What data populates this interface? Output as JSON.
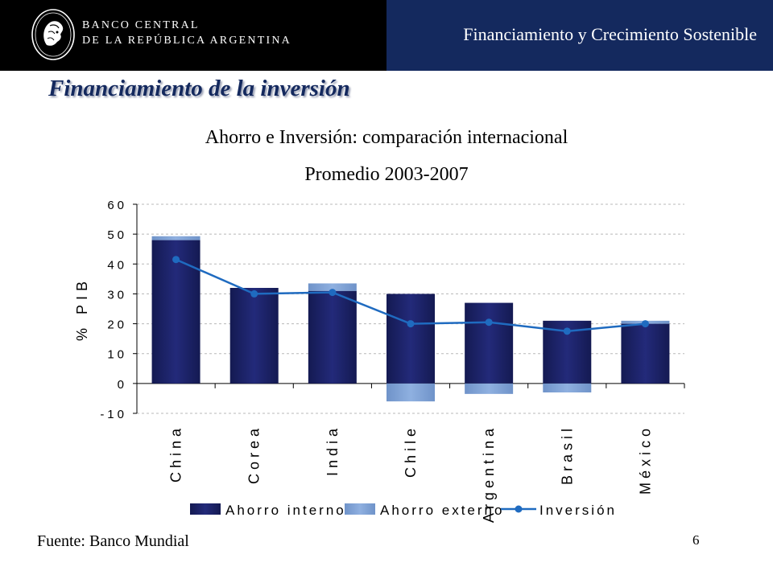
{
  "header": {
    "bank_line1": "BANCO CENTRAL",
    "bank_line2": "DE LA REPÚBLICA ARGENTINA",
    "title": "Financiamiento y Crecimiento Sostenible"
  },
  "slide": {
    "section_title": "Financiamiento de la inversión",
    "source": "Fuente: Banco Mundial",
    "page_number": "6"
  },
  "colors": {
    "header_blue": "#14295e",
    "ahorro_interno": "#232a7a",
    "ahorro_externo": "#8fb0e0",
    "inversion": "#1f6bc0"
  },
  "chart_data": {
    "type": "bar",
    "title": "Ahorro e Inversión: comparación internacional",
    "subtitle": "Promedio 2003-2007",
    "ylabel": "% PIB",
    "xlabel": "",
    "ylim": [
      -10,
      60
    ],
    "yticks": [
      "-10",
      "0",
      "10",
      "20",
      "30",
      "40",
      "50",
      "60"
    ],
    "ytick_values": [
      -10,
      0,
      10,
      20,
      30,
      40,
      50,
      60
    ],
    "grid": true,
    "legend_position": "bottom",
    "categories": [
      "China",
      "Corea",
      "India",
      "Chile",
      "Argentina",
      "Brasil",
      "México"
    ],
    "series": [
      {
        "name": "Ahorro interno",
        "type": "bar",
        "values": [
          48,
          32,
          31,
          30,
          27,
          21,
          20
        ]
      },
      {
        "name": "Ahorro externo",
        "type": "bar",
        "values": [
          1.3,
          0,
          2.5,
          -6,
          -3.5,
          -3,
          1
        ]
      },
      {
        "name": "Inversión",
        "type": "line",
        "values": [
          41.5,
          30,
          30.5,
          20,
          20.5,
          17.5,
          20
        ]
      }
    ]
  }
}
